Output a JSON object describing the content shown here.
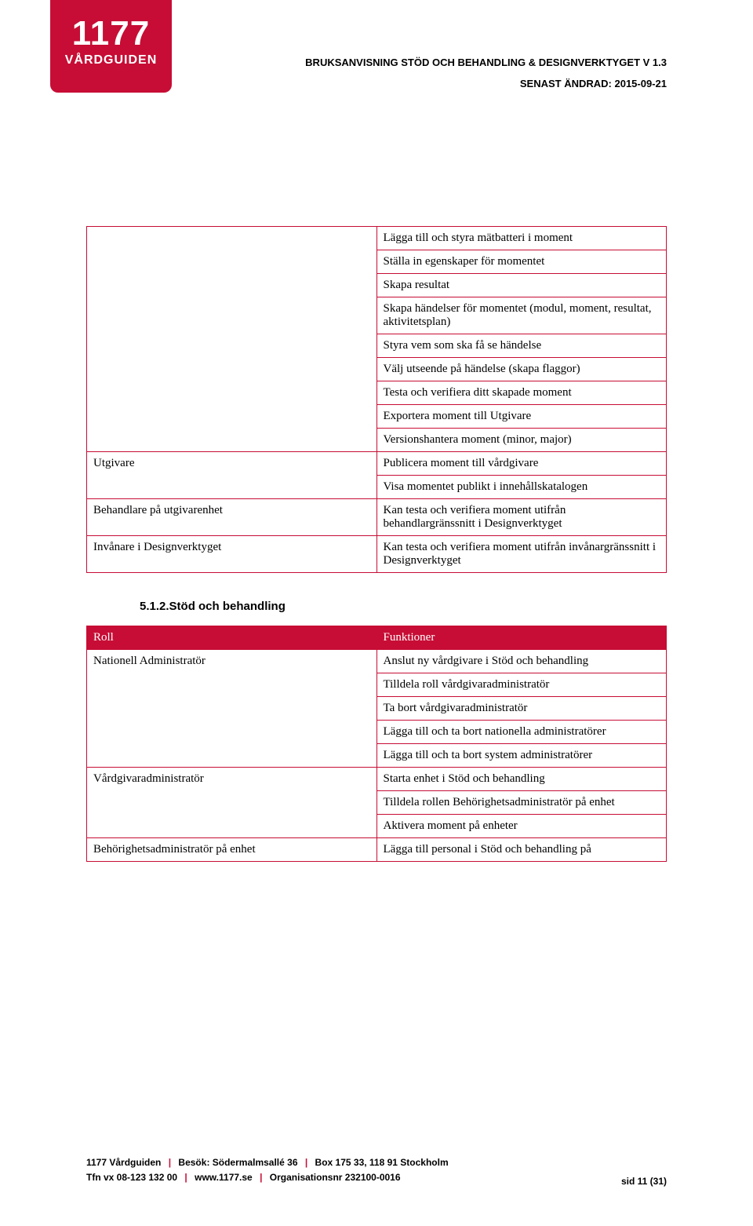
{
  "logo": {
    "line1": "1177",
    "line2": "VÅRDGUIDEN"
  },
  "header": {
    "title": "BRUKSANVISNING STÖD OCH BEHANDLING & DESIGNVERKTYGET V 1.3",
    "date": "SENAST ÄNDRAD: 2015-09-21"
  },
  "colors": {
    "brand": "#c70d35"
  },
  "table1": {
    "rows": [
      {
        "left": "",
        "right": "Lägga till och styra mätbatteri i moment"
      },
      {
        "left": "",
        "right": "Ställa in egenskaper för momentet"
      },
      {
        "left": "",
        "right": "Skapa resultat"
      },
      {
        "left": "",
        "right": "Skapa händelser för momentet (modul, moment, resultat, aktivitetsplan)"
      },
      {
        "left": "",
        "right": "Styra vem som ska få se händelse"
      },
      {
        "left": "",
        "right": "Välj utseende på händelse (skapa flaggor)"
      },
      {
        "left": "",
        "right": "Testa och verifiera ditt skapade moment"
      },
      {
        "left": "",
        "right": "Exportera moment till Utgivare"
      },
      {
        "left": "",
        "right": "Versionshantera moment (minor, major)"
      },
      {
        "left": "Utgivare",
        "right": "Publicera moment till vårdgivare"
      },
      {
        "left": "",
        "right": "Visa momentet publikt i innehållskatalogen"
      },
      {
        "left": "Behandlare på utgivarenhet",
        "right": "Kan testa och verifiera moment utifrån behandlargränssnitt i Designverktyget"
      },
      {
        "left": "Invånare i Designverktyget",
        "right": "Kan testa och verifiera moment utifrån invånargränssnitt i Designverktyget"
      }
    ]
  },
  "section_heading": "5.1.2.Stöd och behandling",
  "table2": {
    "header": {
      "left": "Roll",
      "right": "Funktioner"
    },
    "rows": [
      {
        "left": "Nationell Administratör",
        "right": "Anslut ny vårdgivare i Stöd och behandling"
      },
      {
        "left": "",
        "right": "Tilldela roll vårdgivaradministratör"
      },
      {
        "left": "",
        "right": "Ta bort vårdgivaradministratör"
      },
      {
        "left": "",
        "right": "Lägga till och ta bort nationella administratörer"
      },
      {
        "left": "",
        "right": "Lägga till och ta bort system administratörer"
      },
      {
        "left": "Vårdgivaradministratör",
        "right": "Starta enhet i Stöd och behandling"
      },
      {
        "left": "",
        "right": "Tilldela rollen Behörighetsadministratör på enhet"
      },
      {
        "left": "",
        "right": "Aktivera moment på enheter"
      },
      {
        "left": "Behörighetsadministratör på enhet",
        "right": "Lägga till personal i Stöd och behandling på"
      }
    ]
  },
  "footer": {
    "l1a": "1177 Vårdguiden",
    "l1b": "Besök: Södermalmsallé 36",
    "l1c": "Box 175 33, 118 91 Stockholm",
    "l2a": "Tfn vx 08-123 132 00",
    "l2b": "www.1177.se",
    "l2c": "Organisationsnr 232100-0016",
    "page": "sid 11 (31)"
  }
}
